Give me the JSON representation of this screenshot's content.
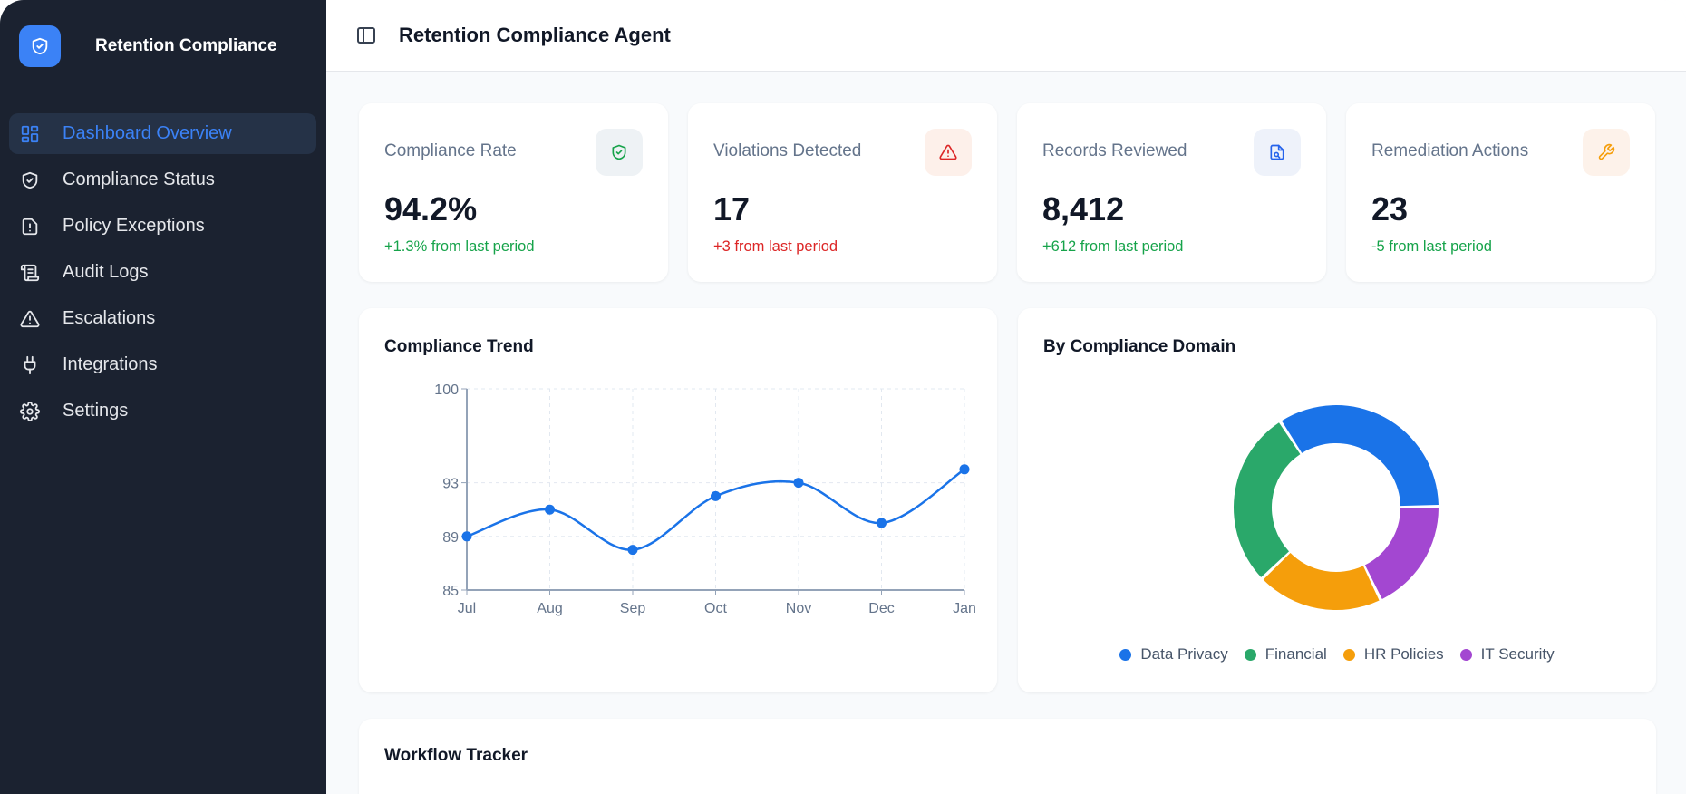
{
  "sidebar": {
    "brand": "Retention Compliance",
    "items": [
      {
        "label": "Dashboard Overview",
        "icon": "layout-grid-icon",
        "active": true
      },
      {
        "label": "Compliance Status",
        "icon": "shield-check-icon"
      },
      {
        "label": "Policy Exceptions",
        "icon": "file-alert-icon"
      },
      {
        "label": "Audit Logs",
        "icon": "scroll-icon"
      },
      {
        "label": "Escalations",
        "icon": "warning-triangle-icon"
      },
      {
        "label": "Integrations",
        "icon": "plug-icon"
      },
      {
        "label": "Settings",
        "icon": "gear-icon"
      }
    ]
  },
  "header": {
    "title": "Retention Compliance Agent"
  },
  "stats": [
    {
      "label": "Compliance Rate",
      "value": "94.2%",
      "change": "+1.3% from last period",
      "change_color": "#16a34a",
      "icon": "shield-check-icon",
      "icon_color": "#16a34a",
      "icon_bg": "#eef2f5"
    },
    {
      "label": "Violations Detected",
      "value": "17",
      "change": "+3 from last period",
      "change_color": "#dc2626",
      "icon": "warning-triangle-icon",
      "icon_color": "#dc2626",
      "icon_bg": "#fdf0ea"
    },
    {
      "label": "Records Reviewed",
      "value": "8,412",
      "change": "+612 from last period",
      "change_color": "#16a34a",
      "icon": "file-search-icon",
      "icon_color": "#2563eb",
      "icon_bg": "#eef2fa"
    },
    {
      "label": "Remediation Actions",
      "value": "23",
      "change": "-5 from last period",
      "change_color": "#16a34a",
      "icon": "wrench-icon",
      "icon_color": "#f59e0b",
      "icon_bg": "#fdf2ea"
    }
  ],
  "workflow": {
    "title": "Workflow Tracker"
  },
  "chart_data": [
    {
      "type": "line",
      "title": "Compliance Trend",
      "categories": [
        "Jul",
        "Aug",
        "Sep",
        "Oct",
        "Nov",
        "Dec",
        "Jan"
      ],
      "values": [
        89,
        91,
        88,
        92,
        93,
        90,
        94
      ],
      "yticks": [
        85,
        89,
        93,
        100
      ],
      "ylim": [
        85,
        100
      ],
      "grid": true,
      "color": "#1a73e8"
    },
    {
      "type": "pie",
      "title": "By Compliance Domain",
      "donut": true,
      "legend": "bottom",
      "series": [
        {
          "name": "Data Privacy",
          "value": 34,
          "color": "#1a73e8"
        },
        {
          "name": "IT Security",
          "value": 18,
          "color": "#a347d1"
        },
        {
          "name": "HR Policies",
          "value": 20,
          "color": "#f59e0b"
        },
        {
          "name": "Financial",
          "value": 28,
          "color": "#2aa86a"
        }
      ],
      "legend_order": [
        "Data Privacy",
        "Financial",
        "HR Policies",
        "IT Security"
      ]
    }
  ]
}
